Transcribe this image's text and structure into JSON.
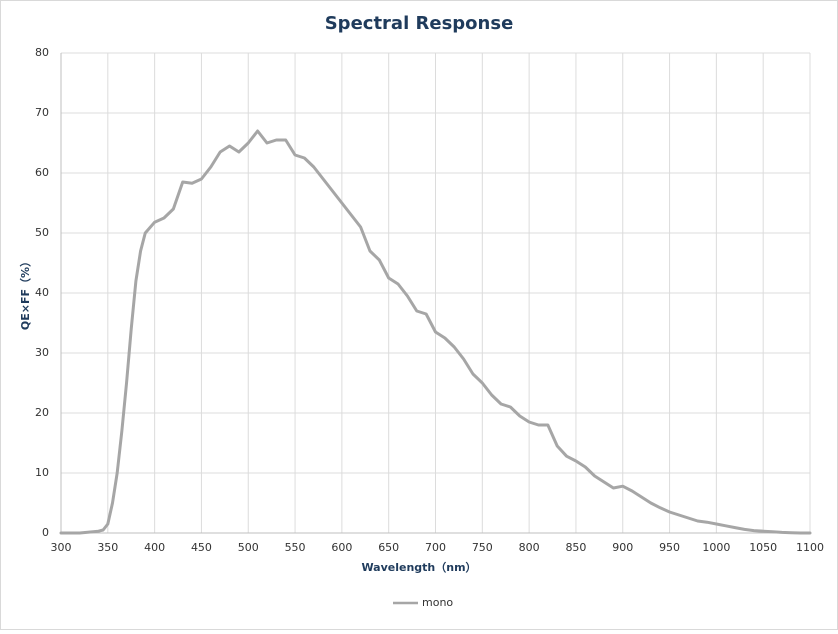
{
  "chart_data": {
    "type": "line",
    "title": "Spectral Response",
    "x_label": "Wavelength（nm）",
    "y_label": "QE×FF（%）",
    "x": [
      300,
      320,
      340,
      345,
      350,
      355,
      360,
      365,
      370,
      375,
      380,
      385,
      390,
      400,
      410,
      420,
      430,
      440,
      450,
      460,
      470,
      480,
      490,
      500,
      510,
      520,
      530,
      540,
      550,
      560,
      570,
      580,
      590,
      600,
      610,
      620,
      630,
      640,
      650,
      660,
      670,
      680,
      690,
      700,
      710,
      720,
      730,
      740,
      750,
      760,
      770,
      780,
      790,
      800,
      810,
      820,
      830,
      840,
      850,
      860,
      870,
      880,
      890,
      900,
      910,
      920,
      930,
      940,
      950,
      960,
      970,
      980,
      990,
      1000,
      1010,
      1020,
      1030,
      1040,
      1050,
      1060,
      1070,
      1080,
      1090,
      1100
    ],
    "series": [
      {
        "name": "mono",
        "color": "#a6a6a6",
        "values": [
          0,
          0,
          0.3,
          0.5,
          1.5,
          5,
          10,
          17,
          25,
          34,
          42,
          47,
          50,
          51.8,
          52.5,
          54,
          58.5,
          58.3,
          59,
          61,
          63.5,
          64.5,
          63.5,
          65,
          67,
          65,
          65.5,
          65.5,
          63,
          62.5,
          61,
          59,
          57,
          55,
          53,
          51,
          47,
          45.5,
          42.5,
          41.5,
          39.5,
          37,
          36.5,
          33.5,
          32.5,
          31,
          29,
          26.5,
          25,
          23,
          21.5,
          21,
          19.5,
          18.5,
          18,
          18,
          14.5,
          12.8,
          12,
          11,
          9.5,
          8.5,
          7.5,
          7.8,
          7,
          6,
          5,
          4.2,
          3.5,
          3,
          2.5,
          2,
          1.8,
          1.5,
          1.2,
          0.9,
          0.6,
          0.4,
          0.3,
          0.2,
          0.1,
          0.05,
          0,
          0
        ]
      }
    ],
    "xlim": [
      300,
      1100
    ],
    "xticks": [
      300,
      350,
      400,
      450,
      500,
      550,
      600,
      650,
      700,
      750,
      800,
      850,
      900,
      950,
      1000,
      1050,
      1100
    ],
    "ylim": [
      0,
      80
    ],
    "yticks": [
      0,
      10,
      20,
      30,
      40,
      50,
      60,
      70,
      80
    ],
    "grid": true,
    "legend": "bottom"
  }
}
